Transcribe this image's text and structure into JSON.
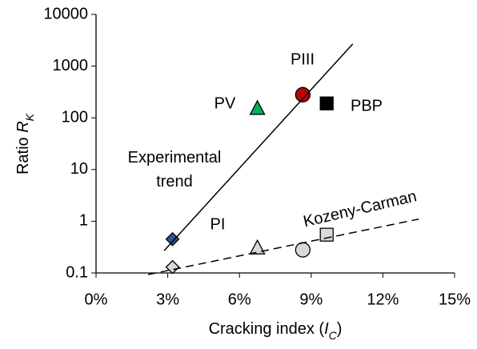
{
  "chart_data": {
    "type": "scatter",
    "xlabel": [
      {
        "text": "Cracking index ("
      },
      {
        "text": "I",
        "style": "italic"
      },
      {
        "text": "C",
        "style": "sub"
      },
      {
        "text": ")"
      }
    ],
    "ylabel": [
      {
        "text": "Ratio "
      },
      {
        "text": "R",
        "style": "italic"
      },
      {
        "text": "K",
        "style": "sub"
      }
    ],
    "xlim": [
      0,
      15
    ],
    "xticks": [
      {
        "value": 0,
        "label": "0%"
      },
      {
        "value": 3,
        "label": "3%"
      },
      {
        "value": 6,
        "label": "6%"
      },
      {
        "value": 9,
        "label": "9%"
      },
      {
        "value": 12,
        "label": "12%"
      },
      {
        "value": 15,
        "label": "15%"
      }
    ],
    "ylim": [
      0.1,
      10000
    ],
    "yticks": [
      0.1,
      1,
      10,
      100,
      1000,
      10000
    ],
    "ylog": true,
    "grid": false,
    "series": [
      {
        "name": "PI",
        "color": "#2f5597",
        "marker": "diamond",
        "x": [
          3.2
        ],
        "values": [
          0.45
        ]
      },
      {
        "name": "PV",
        "color": "#00b050",
        "marker": "triangle",
        "x": [
          6.75
        ],
        "values": [
          150
        ]
      },
      {
        "name": "PIII",
        "color": "#c00000",
        "marker": "circle",
        "x": [
          8.65
        ],
        "values": [
          280
        ]
      },
      {
        "name": "PBP",
        "color": "#000000",
        "marker": "square",
        "x": [
          9.65
        ],
        "values": [
          190
        ]
      },
      {
        "color": "#d9d9d9",
        "markers": [
          "diamond",
          "triangle",
          "circle",
          "square"
        ],
        "x": [
          3.2,
          6.75,
          8.65,
          9.65
        ],
        "values": [
          0.13,
          0.3,
          0.28,
          0.55
        ]
      },
      {
        "name": "Experimental trend",
        "kind": "line",
        "color": "#000000",
        "x": [
          2.85,
          10.74
        ],
        "values": [
          0.27,
          2690
        ]
      },
      {
        "name": "Kozeny-Carman",
        "kind": "line",
        "dashed": true,
        "color": "#000000",
        "x": [
          2.18,
          13.5
        ],
        "values": [
          0.093,
          1.1
        ]
      }
    ]
  }
}
